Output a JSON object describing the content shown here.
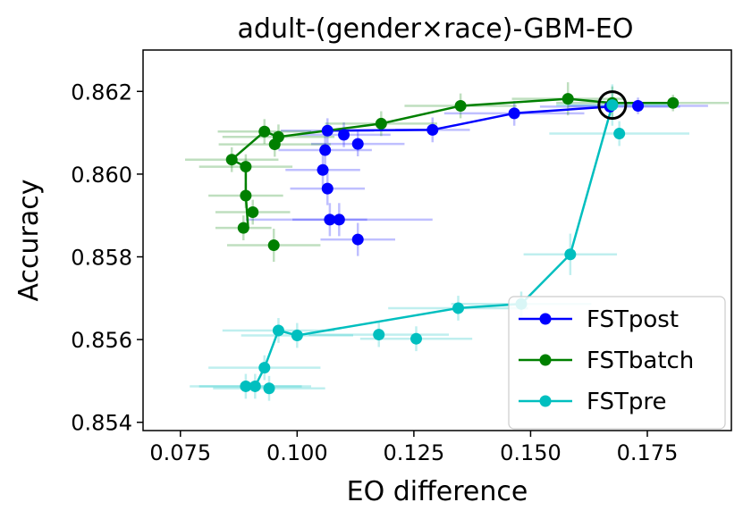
{
  "chart_data": {
    "type": "scatter",
    "title": "adult-(gender×race)-GBM-EO",
    "xlabel": "EO difference",
    "ylabel": "Accuracy",
    "xlim": [
      0.067,
      0.193
    ],
    "ylim": [
      0.8538,
      0.863
    ],
    "x_ticks": [
      0.075,
      0.1,
      0.125,
      0.15,
      0.175
    ],
    "x_tick_labels": [
      "0.075",
      "0.100",
      "0.125",
      "0.150",
      "0.175"
    ],
    "y_ticks": [
      0.854,
      0.856,
      0.858,
      0.86,
      0.862
    ],
    "y_tick_labels": [
      "0.854",
      "0.856",
      "0.858",
      "0.860",
      "0.862"
    ],
    "legend_position": "lower-right",
    "highlight": {
      "x": 0.1675,
      "y": 0.86167
    },
    "series": [
      {
        "name": "FSTpost",
        "color": "#0000ff",
        "line": [
          [
            0.1065,
            0.86105
          ],
          [
            0.129,
            0.86107
          ],
          [
            0.1465,
            0.86147
          ],
          [
            0.167,
            0.86163
          ]
        ],
        "points": [
          {
            "x": 0.1065,
            "y": 0.86105,
            "xerr": 0.01,
            "yerr": 0.0003
          },
          {
            "x": 0.11,
            "y": 0.86095,
            "xerr": 0.01,
            "yerr": 0.0003
          },
          {
            "x": 0.113,
            "y": 0.86073,
            "xerr": 0.01,
            "yerr": 0.0003
          },
          {
            "x": 0.106,
            "y": 0.86058,
            "xerr": 0.01,
            "yerr": 0.0004
          },
          {
            "x": 0.1055,
            "y": 0.8601,
            "xerr": 0.008,
            "yerr": 0.0004
          },
          {
            "x": 0.1065,
            "y": 0.85965,
            "xerr": 0.008,
            "yerr": 0.0004
          },
          {
            "x": 0.107,
            "y": 0.8589,
            "xerr": 0.008,
            "yerr": 0.0004
          },
          {
            "x": 0.109,
            "y": 0.8589,
            "xerr": 0.02,
            "yerr": 0.0004
          },
          {
            "x": 0.113,
            "y": 0.85842,
            "xerr": 0.008,
            "yerr": 0.0004
          },
          {
            "x": 0.129,
            "y": 0.86107,
            "xerr": 0.008,
            "yerr": 0.0003
          },
          {
            "x": 0.1465,
            "y": 0.86147,
            "xerr": 0.015,
            "yerr": 0.0003
          },
          {
            "x": 0.167,
            "y": 0.86163,
            "xerr": 0.015,
            "yerr": 0.0002
          },
          {
            "x": 0.173,
            "y": 0.86165,
            "xerr": 0.015,
            "yerr": 0.0002
          }
        ]
      },
      {
        "name": "FSTbatch",
        "color": "#008000",
        "line": [
          [
            0.0895,
            0.8587
          ],
          [
            0.089,
            0.85948
          ],
          [
            0.089,
            0.86018
          ],
          [
            0.086,
            0.86035
          ],
          [
            0.093,
            0.86103
          ],
          [
            0.096,
            0.8609
          ],
          [
            0.118,
            0.86122
          ],
          [
            0.135,
            0.86165
          ],
          [
            0.158,
            0.86182
          ],
          [
            0.1675,
            0.86172
          ],
          [
            0.1805,
            0.86172
          ]
        ],
        "points": [
          {
            "x": 0.086,
            "y": 0.86035,
            "xerr": 0.01,
            "yerr": 0.0003
          },
          {
            "x": 0.089,
            "y": 0.86018,
            "xerr": 0.01,
            "yerr": 0.0003
          },
          {
            "x": 0.093,
            "y": 0.86103,
            "xerr": 0.01,
            "yerr": 0.0003
          },
          {
            "x": 0.096,
            "y": 0.8609,
            "xerr": 0.012,
            "yerr": 0.0003
          },
          {
            "x": 0.0952,
            "y": 0.86072,
            "xerr": 0.012,
            "yerr": 0.0003
          },
          {
            "x": 0.089,
            "y": 0.85948,
            "xerr": 0.008,
            "yerr": 0.0003
          },
          {
            "x": 0.0905,
            "y": 0.85908,
            "xerr": 0.008,
            "yerr": 0.0003
          },
          {
            "x": 0.0885,
            "y": 0.8587,
            "xerr": 0.006,
            "yerr": 0.0003
          },
          {
            "x": 0.095,
            "y": 0.85828,
            "xerr": 0.01,
            "yerr": 0.0004
          },
          {
            "x": 0.118,
            "y": 0.86122,
            "xerr": 0.012,
            "yerr": 0.0003
          },
          {
            "x": 0.135,
            "y": 0.86165,
            "xerr": 0.012,
            "yerr": 0.0003
          },
          {
            "x": 0.158,
            "y": 0.86182,
            "xerr": 0.012,
            "yerr": 0.0004
          },
          {
            "x": 0.1675,
            "y": 0.86172,
            "xerr": 0.012,
            "yerr": 0.0004
          },
          {
            "x": 0.1805,
            "y": 0.86172,
            "xerr": 0.012,
            "yerr": 0.0002
          }
        ]
      },
      {
        "name": "FSTpre",
        "color": "#00bfbf",
        "line": [
          [
            0.089,
            0.85487
          ],
          [
            0.091,
            0.85487
          ],
          [
            0.093,
            0.85532
          ],
          [
            0.096,
            0.85622
          ],
          [
            0.1,
            0.8561
          ],
          [
            0.1345,
            0.85676
          ],
          [
            0.148,
            0.85686
          ],
          [
            0.1585,
            0.85806
          ],
          [
            0.1675,
            0.86167
          ]
        ],
        "points": [
          {
            "x": 0.089,
            "y": 0.85487,
            "xerr": 0.012,
            "yerr": 0.0003
          },
          {
            "x": 0.091,
            "y": 0.85487,
            "xerr": 0.012,
            "yerr": 0.0003
          },
          {
            "x": 0.094,
            "y": 0.85482,
            "xerr": 0.012,
            "yerr": 0.0003
          },
          {
            "x": 0.093,
            "y": 0.85532,
            "xerr": 0.012,
            "yerr": 0.0003
          },
          {
            "x": 0.096,
            "y": 0.85622,
            "xerr": 0.012,
            "yerr": 0.0003
          },
          {
            "x": 0.1,
            "y": 0.8561,
            "xerr": 0.012,
            "yerr": 0.0003
          },
          {
            "x": 0.1175,
            "y": 0.85612,
            "xerr": 0.015,
            "yerr": 0.0003
          },
          {
            "x": 0.1255,
            "y": 0.85602,
            "xerr": 0.012,
            "yerr": 0.0003
          },
          {
            "x": 0.1345,
            "y": 0.85676,
            "xerr": 0.015,
            "yerr": 0.0003
          },
          {
            "x": 0.148,
            "y": 0.85686,
            "xerr": 0.015,
            "yerr": 0.0003
          },
          {
            "x": 0.1585,
            "y": 0.85806,
            "xerr": 0.01,
            "yerr": 0.0005
          },
          {
            "x": 0.1675,
            "y": 0.86167,
            "xerr": 0.012,
            "yerr": 0.0005
          },
          {
            "x": 0.169,
            "y": 0.86098,
            "xerr": 0.015,
            "yerr": 0.0003
          }
        ]
      }
    ]
  }
}
